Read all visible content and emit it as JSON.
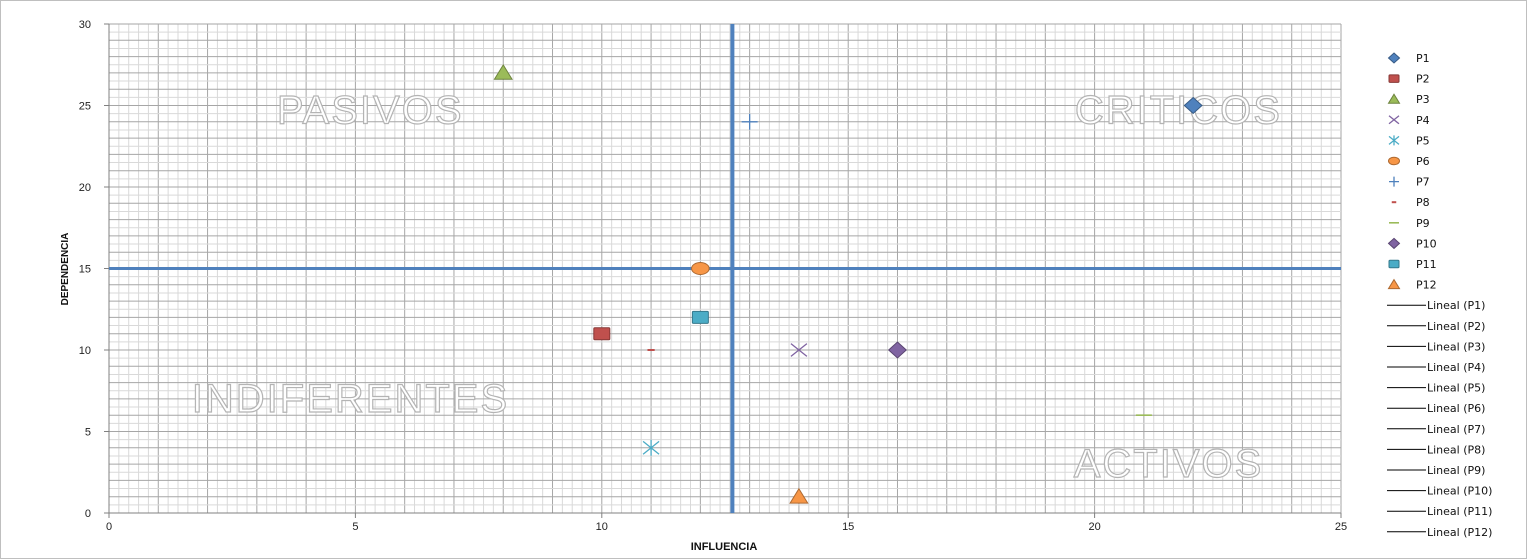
{
  "chart_data": {
    "type": "scatter",
    "title": "",
    "xlabel": "INFLUENCIA",
    "ylabel": "DEPENDENCIA",
    "xlim": [
      0,
      25
    ],
    "ylim": [
      0,
      30
    ],
    "x_ticks": [
      0,
      5,
      10,
      15,
      20,
      25
    ],
    "y_ticks": [
      0,
      5,
      10,
      15,
      20,
      25,
      30
    ],
    "minor_grid": true,
    "legend_position": "right",
    "reference_lines": {
      "x": 12.65,
      "y": 15,
      "color": "#4F81BD"
    },
    "quadrant_labels": [
      {
        "text": "PASIVOS",
        "x": 5.3,
        "y": 23.9
      },
      {
        "text": "CRITICOS",
        "x": 21.7,
        "y": 23.9
      },
      {
        "text": "INDIFERENTES",
        "x": 4.9,
        "y": 6.2
      },
      {
        "text": "ACTIVOS",
        "x": 21.5,
        "y": 2.2
      }
    ],
    "series": [
      {
        "name": "P1",
        "x": 22,
        "y": 25,
        "marker": "diamond",
        "color": "#4F81BD"
      },
      {
        "name": "P2",
        "x": 10,
        "y": 11,
        "marker": "square",
        "color": "#C0504D"
      },
      {
        "name": "P3",
        "x": 8,
        "y": 27,
        "marker": "triangle",
        "color": "#9BBB59"
      },
      {
        "name": "P4",
        "x": 14,
        "y": 10,
        "marker": "x",
        "color": "#8064A2"
      },
      {
        "name": "P5",
        "x": 11,
        "y": 4,
        "marker": "star",
        "color": "#4BACC6"
      },
      {
        "name": "P6",
        "x": 12,
        "y": 15,
        "marker": "circle",
        "color": "#F79646"
      },
      {
        "name": "P7",
        "x": 13,
        "y": 24,
        "marker": "plus",
        "color": "#4F81BD"
      },
      {
        "name": "P8",
        "x": 11,
        "y": 10,
        "marker": "dash",
        "color": "#C0504D"
      },
      {
        "name": "P9",
        "x": 21,
        "y": 6,
        "marker": "line",
        "color": "#9BBB59"
      },
      {
        "name": "P10",
        "x": 16,
        "y": 10,
        "marker": "diamond",
        "color": "#8064A2"
      },
      {
        "name": "P11",
        "x": 12,
        "y": 12,
        "marker": "square",
        "color": "#4BACC6"
      },
      {
        "name": "P12",
        "x": 14,
        "y": 1,
        "marker": "triangle",
        "color": "#F79646"
      }
    ],
    "trendline_legend": [
      "Lineal (P1)",
      "Lineal (P2)",
      "Lineal (P3)",
      "Lineal (P4)",
      "Lineal (P5)",
      "Lineal (P6)",
      "Lineal (P7)",
      "Lineal (P8)",
      "Lineal (P9)",
      "Lineal (P10)",
      "Lineal (P11)",
      "Lineal (P12)"
    ]
  }
}
